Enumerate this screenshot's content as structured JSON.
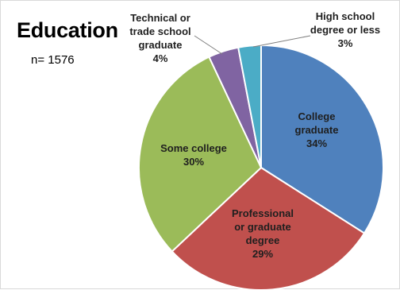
{
  "chart_data": {
    "type": "pie",
    "title": "Education",
    "subtitle": "n= 1576",
    "slices": [
      {
        "label": "College graduate",
        "value": 34,
        "value_label": "34%",
        "color": "#4F81BD"
      },
      {
        "label": "Professional or graduate degree",
        "value": 29,
        "value_label": "29%",
        "color": "#C0504D"
      },
      {
        "label": "Some college",
        "value": 30,
        "value_label": "30%",
        "color": "#9BBB59"
      },
      {
        "label": "Technical or trade school graduate",
        "value": 4,
        "value_label": "4%",
        "color": "#8064A2"
      },
      {
        "label": "High school degree or less",
        "value": 3,
        "value_label": "3%",
        "color": "#4BACC6"
      }
    ],
    "legend": "none"
  }
}
